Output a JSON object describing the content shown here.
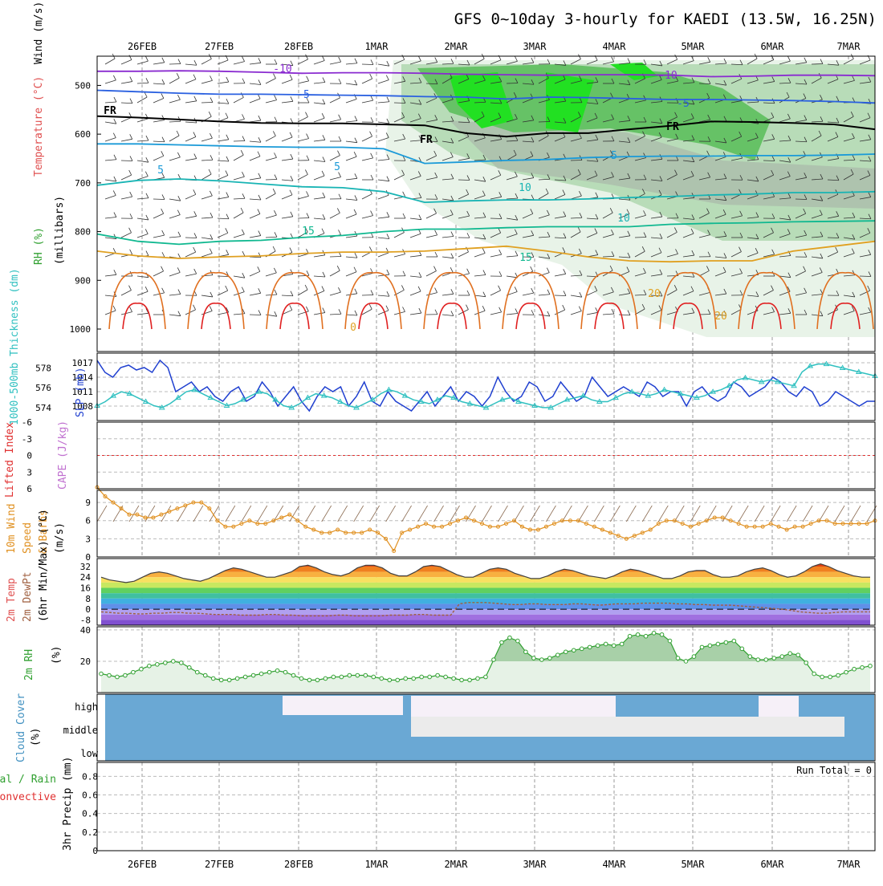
{
  "title": "GFS 0~10day 3-hourly for KAEDI (13.5W, 16.25N)",
  "date_labels": [
    "26FEB",
    "27FEB",
    "28FEB",
    "1MAR",
    "2MAR",
    "3MAR",
    "4MAR",
    "5MAR",
    "6MAR",
    "7MAR"
  ],
  "chart_data": [
    {
      "type": "line",
      "panel": "upper-air",
      "ylabel": [
        "Wind (m/s)",
        "Temperature (°C)",
        "RH (%)",
        "(millibars)"
      ],
      "yticks": [
        500,
        600,
        700,
        800,
        900,
        1000
      ],
      "contour_labels": [
        "-10",
        "-10",
        "-5",
        "-5",
        "FR",
        "FR",
        "FR",
        "5",
        "5",
        "5",
        "10",
        "10",
        "15",
        "15",
        "20",
        "20",
        "0"
      ],
      "series": [
        {
          "name": "-10",
          "color": "#8a2bd0",
          "values": [
            471,
            471,
            470,
            471,
            473,
            475,
            474,
            474,
            475,
            477,
            478,
            479,
            478,
            478,
            479,
            482,
            481,
            479,
            479,
            480
          ]
        },
        {
          "name": "-5",
          "color": "#2a60e0",
          "values": [
            510,
            513,
            516,
            518,
            518,
            519,
            520,
            521,
            523,
            524,
            528,
            524,
            525,
            527,
            529,
            529,
            530,
            531,
            533,
            536
          ]
        },
        {
          "name": "FR",
          "color": "#000000",
          "values": [
            563,
            566,
            570,
            574,
            577,
            578,
            578,
            580,
            582,
            598,
            605,
            598,
            598,
            590,
            583,
            574,
            575,
            577,
            580,
            590
          ]
        },
        {
          "name": "5",
          "color": "#1a9ad8",
          "values": [
            620,
            620,
            622,
            624,
            626,
            627,
            627,
            630,
            660,
            657,
            654,
            652,
            648,
            646,
            645,
            645,
            644,
            644,
            643,
            641
          ]
        },
        {
          "name": "10",
          "color": "#18b4b4",
          "values": [
            705,
            695,
            692,
            696,
            702,
            708,
            710,
            718,
            740,
            737,
            735,
            735,
            733,
            730,
            728,
            725,
            723,
            720,
            720,
            718
          ]
        },
        {
          "name": "15",
          "color": "#10b890",
          "values": [
            805,
            820,
            826,
            820,
            818,
            812,
            808,
            800,
            795,
            795,
            792,
            790,
            790,
            790,
            785,
            783,
            782,
            780,
            779,
            778
          ]
        },
        {
          "name": "20",
          "color": "#e0a020",
          "values": [
            840,
            850,
            855,
            852,
            850,
            845,
            842,
            842,
            840,
            835,
            830,
            840,
            852,
            860,
            862,
            860,
            860,
            840,
            830,
            820
          ]
        }
      ]
    },
    {
      "type": "line",
      "panel": "slp-thickness",
      "ylabel_left": "1000-500mb Thickness (dm)",
      "ylabel_right": "SLP (mb)",
      "yticks_left": [
        574,
        576,
        578
      ],
      "yticks_right": [
        1008,
        1011,
        1014,
        1017
      ],
      "series": [
        {
          "name": "SLP",
          "axis": "right",
          "color": "#2040d0",
          "values": [
            1017.5,
            1015,
            1014,
            1016,
            1016.5,
            1015.5,
            1016,
            1015,
            1017.5,
            1016,
            1011,
            1012,
            1013,
            1011,
            1012,
            1010,
            1009,
            1011,
            1012,
            1009,
            1010,
            1013,
            1011,
            1008,
            1010,
            1012,
            1009,
            1007,
            1010,
            1012,
            1011,
            1012,
            1008,
            1010,
            1013,
            1009,
            1008,
            1011,
            1009,
            1008,
            1007,
            1009,
            1011,
            1008,
            1010,
            1012,
            1009,
            1011,
            1010,
            1008,
            1010,
            1014,
            1011,
            1009,
            1010,
            1013,
            1012,
            1009,
            1010,
            1013,
            1011,
            1009,
            1010,
            1014,
            1012,
            1010,
            1011,
            1012,
            1011,
            1010,
            1013,
            1012,
            1010,
            1011,
            1011,
            1008,
            1011,
            1012,
            1010,
            1009,
            1010,
            1013,
            1012,
            1010,
            1011,
            1012,
            1014,
            1013,
            1011,
            1010,
            1012,
            1011,
            1008,
            1009,
            1011,
            1010,
            1009,
            1008,
            1009,
            1009
          ]
        },
        {
          "name": "Thickness",
          "axis": "left",
          "color": "#30c0c0",
          "values": [
            574.2,
            574.6,
            575.2,
            575.6,
            575.4,
            575.0,
            574.6,
            574.2,
            574.0,
            574.4,
            575.0,
            575.6,
            575.8,
            575.4,
            575.0,
            574.6,
            574.2,
            574.4,
            574.8,
            575.2,
            575.6,
            575.4,
            574.8,
            574.2,
            574.0,
            574.4,
            575.0,
            575.4,
            575.2,
            575.0,
            574.6,
            574.2,
            574.0,
            574.4,
            574.8,
            575.4,
            575.8,
            575.6,
            575.2,
            574.8,
            574.6,
            574.4,
            574.8,
            575.2,
            575.0,
            574.6,
            574.4,
            574.2,
            574.0,
            574.4,
            574.8,
            575.0,
            574.6,
            574.4,
            574.2,
            574.0,
            574.0,
            574.4,
            574.8,
            575.0,
            575.2,
            574.8,
            574.6,
            574.6,
            575.0,
            575.4,
            575.6,
            575.4,
            575.2,
            575.4,
            575.8,
            575.6,
            575.4,
            575.2,
            575.0,
            575.2,
            575.6,
            575.8,
            576.2,
            576.8,
            577.0,
            576.8,
            576.6,
            576.8,
            576.6,
            576.4,
            576.2,
            577.6,
            578.2,
            578.4,
            578.4,
            578.2,
            578.0,
            577.8,
            577.6,
            577.4,
            577.2
          ]
        }
      ]
    },
    {
      "type": "line",
      "panel": "lifted-index-cape",
      "ylabel": [
        "Lifted Index",
        "CAPE (J/kg)"
      ],
      "yticks": [
        "-6",
        "-3",
        "0",
        "3",
        "6"
      ],
      "series": [
        {
          "name": "Lifted Index",
          "color": "#e03030",
          "values": []
        }
      ]
    },
    {
      "type": "line",
      "panel": "10m-wind",
      "ylabel": [
        "10m Wind",
        "Speed",
        "& Barbs",
        "(m/s)"
      ],
      "yticks": [
        0,
        3,
        6,
        9
      ],
      "ylim": [
        0,
        11
      ],
      "series": [
        {
          "name": "10m Wind Speed",
          "color": "#e09020",
          "values": [
            11.5,
            10,
            9,
            8,
            7,
            7,
            6.5,
            6.5,
            7,
            7.5,
            8,
            8.5,
            9,
            9,
            8,
            6,
            5,
            5,
            5.5,
            6,
            5.5,
            5.5,
            6,
            6.5,
            7,
            6,
            5,
            4.5,
            4,
            4,
            4.5,
            4,
            4,
            4,
            4.5,
            4,
            3,
            1,
            4,
            4.5,
            5,
            5.5,
            5,
            5,
            5.5,
            6,
            6.5,
            6,
            5.5,
            5,
            5,
            5.5,
            6,
            5,
            4.5,
            4.5,
            5,
            5.5,
            6,
            6,
            6,
            5.5,
            5,
            4.5,
            4,
            3.5,
            3,
            3.5,
            4,
            4.5,
            5.5,
            6,
            6,
            5.5,
            5,
            5.5,
            6,
            6.5,
            6.5,
            6,
            5.5,
            5,
            5,
            5,
            5.5,
            5,
            4.5,
            5,
            5,
            5.5,
            6,
            6,
            5.5,
            5.5,
            5.5,
            5.5,
            5.5,
            6
          ]
        }
      ]
    },
    {
      "type": "line",
      "panel": "2m-temp",
      "ylabel": [
        "2m Temp",
        "2m DewPt",
        "(6hr Min/Max) (°C)"
      ],
      "yticks": [
        -8,
        0,
        8,
        16,
        24,
        32
      ],
      "series": [
        {
          "name": "2m Temp",
          "color": "#404040",
          "values": [
            24,
            22,
            21,
            20,
            21,
            24,
            27,
            28,
            27,
            25,
            23,
            22,
            21,
            23,
            26,
            29,
            31,
            30,
            28,
            26,
            24,
            24,
            26,
            28,
            32,
            33,
            31,
            28,
            26,
            25,
            27,
            31,
            33,
            33,
            31,
            27,
            25,
            25,
            28,
            32,
            33,
            32,
            29,
            26,
            24,
            24,
            27,
            30,
            31,
            30,
            27,
            25,
            23,
            23,
            25,
            28,
            30,
            29,
            27,
            25,
            24,
            23,
            25,
            28,
            30,
            29,
            27,
            25,
            23,
            23,
            25,
            28,
            29,
            29,
            26,
            24,
            24,
            25,
            28,
            30,
            31,
            29,
            26,
            24,
            25,
            28,
            32,
            34,
            32,
            29,
            27,
            25,
            24,
            24
          ]
        },
        {
          "name": "2m DewPt",
          "color": "#a06040",
          "values": [
            -2,
            -2.5,
            -3,
            -3,
            -3.5,
            -3.5,
            -3,
            -3,
            -2.5,
            -2.5,
            -3,
            -3,
            -3.5,
            -4,
            -4,
            -4,
            -4.5,
            -4.5,
            -4.5,
            -4,
            -4,
            -4.5,
            -4.5,
            -5,
            -5,
            -5,
            -5,
            -4.5,
            -4.5,
            -5,
            -5,
            -5,
            -5,
            -4.5,
            -4.5,
            -4.5,
            -4,
            -4,
            -4.5,
            -4.5,
            -4.5,
            4,
            5,
            5,
            5,
            4.5,
            4,
            3.5,
            3.5,
            4,
            4,
            3.5,
            3.5,
            3.5,
            4,
            4,
            3.5,
            3,
            3.5,
            4,
            4,
            4,
            4.5,
            4.5,
            4.5,
            4.5,
            4,
            4,
            3.5,
            3.5,
            3,
            3,
            3,
            2.5,
            2,
            1.5,
            1,
            0.5,
            0,
            -1,
            -2,
            -2.5,
            -3,
            -3,
            -2.5,
            -2,
            -2,
            -2,
            -2
          ]
        }
      ]
    },
    {
      "type": "area",
      "panel": "2m-rh",
      "ylabel": [
        "2m RH",
        "(%)"
      ],
      "yticks": [
        20,
        40
      ],
      "series": [
        {
          "name": "2m RH",
          "color": "#30a030",
          "values": [
            12,
            11,
            10,
            11,
            13,
            15,
            17,
            18,
            19,
            20,
            19,
            16,
            13,
            11,
            9,
            8,
            8,
            9,
            10,
            11,
            12,
            13,
            14,
            13,
            11,
            9,
            8,
            8,
            9,
            10,
            10,
            11,
            11,
            11,
            10,
            9,
            8,
            8,
            9,
            9,
            10,
            10,
            11,
            10,
            9,
            8,
            8,
            9,
            10,
            21,
            32,
            35,
            33,
            26,
            22,
            21,
            22,
            24,
            26,
            27,
            28,
            29,
            30,
            31,
            30,
            31,
            36,
            37,
            36,
            38,
            37,
            33,
            22,
            20,
            23,
            29,
            30,
            31,
            32,
            33,
            28,
            23,
            21,
            21,
            22,
            23,
            25,
            24,
            19,
            12,
            10,
            10,
            11,
            13,
            15,
            16,
            17
          ]
        }
      ]
    },
    {
      "type": "bar",
      "panel": "cloud-cover",
      "ylabel": [
        "Cloud Cover",
        "(%)"
      ],
      "layers": [
        "high",
        "middle",
        "low"
      ]
    },
    {
      "type": "bar",
      "panel": "precip",
      "ylabel_left": "3hr Precip (mm)",
      "ylabel_side": [
        "Total / Rain",
        "Convective"
      ],
      "yticks": [
        "0",
        "0.2",
        "0.4",
        "0.6",
        "0.8"
      ],
      "run_total": "Run Total = 0",
      "values": []
    }
  ]
}
